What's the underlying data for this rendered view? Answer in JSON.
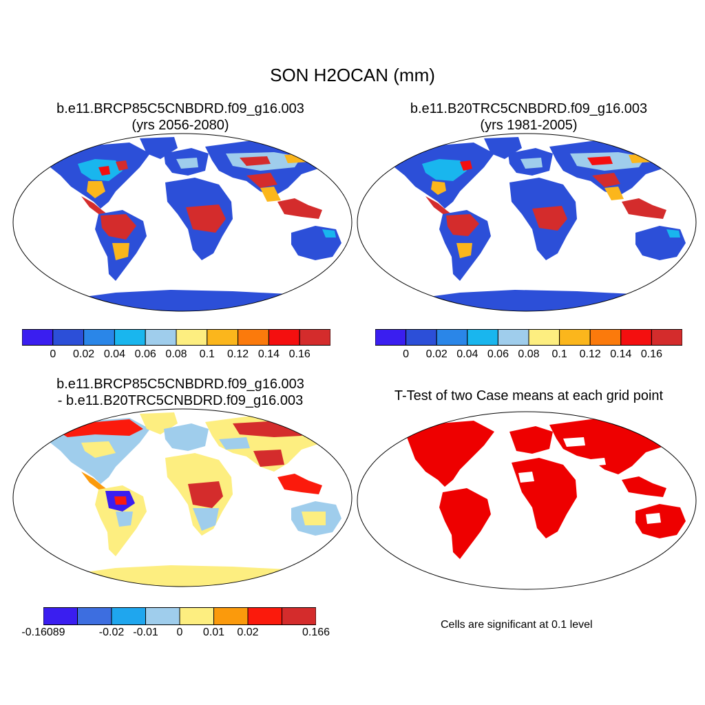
{
  "figure": {
    "main_title": "SON H2OCAN (mm)"
  },
  "panels": [
    {
      "title_line1": "b.e11.BRCP85C5CNBDRD.f09_g16.003",
      "title_line2": "(yrs 2056-2080)"
    },
    {
      "title_line1": "b.e11.B20TRC5CNBDRD.f09_g16.003",
      "title_line2": "(yrs 1981-2005)"
    },
    {
      "title_line1": "b.e11.BRCP85C5CNBDRD.f09_g16.003",
      "title_line2": "- b.e11.B20TRC5CNBDRD.f09_g16.003"
    },
    {
      "title_line1": "T-Test of two Case means at each grid point",
      "note": "Cells are significant at 0.1 level"
    }
  ],
  "colorbar_abs": {
    "colors": [
      "#3a1ef0",
      "#2c4fd8",
      "#2a86e8",
      "#19b6ee",
      "#9fcdec",
      "#fdee80",
      "#fbb61c",
      "#fb7a0c",
      "#f40f0f",
      "#d42c2c"
    ],
    "labels": [
      "0",
      "0.02",
      "0.04",
      "0.06",
      "0.08",
      "0.1",
      "0.12",
      "0.14",
      "0.16"
    ]
  },
  "colorbar_diff": {
    "colors": [
      "#3a1ef0",
      "#3d6ee0",
      "#1fa6ee",
      "#9fcdec",
      "#fdee80",
      "#fb9a0c",
      "#fb1a0c",
      "#d42c2c"
    ],
    "labels": [
      "-0.16089",
      "-0.02",
      "-0.01",
      "0",
      "0.01",
      "0.02",
      "0.166"
    ]
  },
  "legend_colors": {
    "significant": "#ee0000",
    "ocean": "#ffffff",
    "antarctica_diff": "#fdee80",
    "land_base": "#2c4fd8"
  }
}
